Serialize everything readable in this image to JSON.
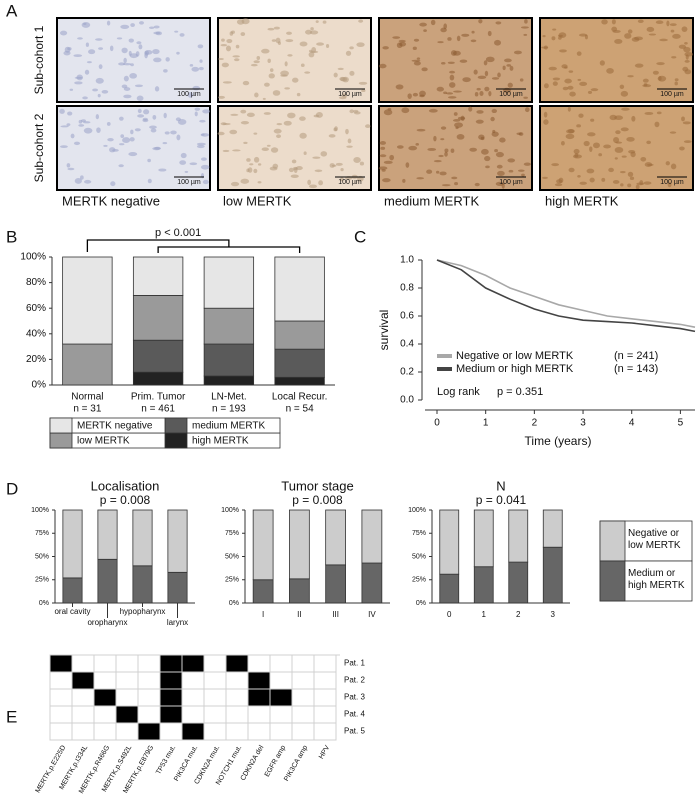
{
  "panel_a": {
    "label": "A",
    "rows": [
      "Sub-cohort 1",
      "Sub-cohort 2"
    ],
    "columns": [
      "MERTK negative",
      "low MERTK",
      "medium MERTK",
      "high MERTK"
    ],
    "scale_bar": "100 µm"
  },
  "chart_data": [
    {
      "type": "bar",
      "stacked": true,
      "panel_label": "B",
      "categories": [
        "Normal",
        "Prim. Tumor",
        "LN-Met.",
        "Local Recur."
      ],
      "category_notes": [
        "n = 31",
        "n = 461",
        "n = 193",
        "n = 54"
      ],
      "annotation": "p < 0.001",
      "series": [
        {
          "name": "high MERTK",
          "color": "#222222",
          "values": [
            0,
            10,
            7,
            6
          ]
        },
        {
          "name": "medium MERTK",
          "color": "#5a5a5a",
          "values": [
            0,
            25,
            25,
            22
          ]
        },
        {
          "name": "low MERTK",
          "color": "#9a9a9a",
          "values": [
            32,
            35,
            28,
            22
          ]
        },
        {
          "name": "MERTK negative",
          "color": "#e6e6e6",
          "values": [
            68,
            30,
            40,
            50
          ]
        }
      ],
      "ylim": [
        0,
        100
      ],
      "yticks": [
        {
          "value": 0,
          "label": "0%"
        },
        {
          "value": 20,
          "label": "20%"
        },
        {
          "value": 40,
          "label": "40%"
        },
        {
          "value": 60,
          "label": "60%"
        },
        {
          "value": 80,
          "label": "80%"
        },
        {
          "value": 100,
          "label": "100%"
        }
      ]
    },
    {
      "type": "line",
      "panel_label": "C",
      "xlabel": "Time (years)",
      "ylabel": "survival",
      "annotations": [
        "Log rank",
        "p = 0.351"
      ],
      "series": [
        {
          "name": "Negative or low MERTK",
          "note": "(n = 241)",
          "color": "#a8a8a8",
          "x": [
            0,
            0.5,
            1,
            1.5,
            2,
            2.5,
            3,
            3.5,
            4,
            4.5,
            5,
            5.3
          ],
          "y": [
            1,
            0.96,
            0.89,
            0.8,
            0.74,
            0.68,
            0.64,
            0.6,
            0.58,
            0.56,
            0.54,
            0.52
          ]
        },
        {
          "name": "Medium or high MERTK",
          "note": "(n = 143)",
          "color": "#444444",
          "x": [
            0,
            0.5,
            1,
            1.5,
            2,
            2.5,
            3,
            3.5,
            4,
            4.5,
            5,
            5.3
          ],
          "y": [
            1,
            0.93,
            0.8,
            0.72,
            0.65,
            0.6,
            0.57,
            0.56,
            0.55,
            0.53,
            0.51,
            0.49
          ]
        }
      ],
      "xlim": [
        0,
        5.3
      ],
      "xticks": [
        0,
        1,
        2,
        3,
        4,
        5
      ],
      "ylim": [
        0,
        1
      ],
      "yticks": [
        {
          "value": 0,
          "label": "0.0"
        },
        0.2,
        0.4,
        0.6,
        0.8,
        {
          "value": 1,
          "label": "1.0"
        }
      ]
    },
    {
      "type": "bar",
      "stacked": true,
      "panel_label": "D",
      "title": "Localisation",
      "subtitle": "p = 0.008",
      "categories": [
        "oral cavity",
        "oropharynx",
        "hypopharynx",
        "larynx"
      ],
      "series": [
        {
          "name": "Medium or high MERTK",
          "color": "#666666",
          "values": [
            27,
            47,
            40,
            33
          ]
        },
        {
          "name": "Negative or low MERTK",
          "color": "#cccccc",
          "values": [
            73,
            53,
            60,
            67
          ]
        }
      ],
      "ylim": [
        0,
        100
      ],
      "yticks": [
        {
          "value": 0,
          "label": "0%"
        },
        {
          "value": 25,
          "label": "25%"
        },
        {
          "value": 50,
          "label": "50%"
        },
        {
          "value": 75,
          "label": "75%"
        },
        {
          "value": 100,
          "label": "100%"
        }
      ]
    },
    {
      "type": "bar",
      "stacked": true,
      "title": "Tumor stage",
      "subtitle": "p = 0.008",
      "categories": [
        "I",
        "II",
        "III",
        "IV"
      ],
      "series": [
        {
          "color": "#666666",
          "values": [
            25,
            26,
            41,
            43
          ]
        },
        {
          "color": "#cccccc",
          "values": [
            75,
            74,
            59,
            57
          ]
        }
      ],
      "ylim": [
        0,
        100
      ],
      "yticks": [
        {
          "value": 0,
          "label": "0%"
        },
        {
          "value": 25,
          "label": "25%"
        },
        {
          "value": 50,
          "label": "50%"
        },
        {
          "value": 75,
          "label": "75%"
        },
        {
          "value": 100,
          "label": "100%"
        }
      ]
    },
    {
      "type": "bar",
      "stacked": true,
      "title": "N",
      "subtitle": "p = 0.041",
      "categories": [
        "0",
        "1",
        "2",
        "3"
      ],
      "series": [
        {
          "color": "#666666",
          "values": [
            31,
            39,
            44,
            60
          ]
        },
        {
          "color": "#cccccc",
          "values": [
            69,
            61,
            56,
            40
          ]
        }
      ],
      "ylim": [
        0,
        100
      ],
      "yticks": [
        {
          "value": 0,
          "label": "0%"
        },
        {
          "value": 25,
          "label": "25%"
        },
        {
          "value": 50,
          "label": "50%"
        },
        {
          "value": 75,
          "label": "75%"
        },
        {
          "value": 100,
          "label": "100%"
        }
      ]
    }
  ],
  "panel_e": {
    "label": "E",
    "features": [
      "MERTK.p.E225D",
      "MERTK.p.I334L",
      "MERTK.p.R466G",
      "MERTK.p.S492L",
      "MERTK.p.E879G",
      "TP53 mut.",
      "PIK3CA mut.",
      "CDKN2A mut.",
      "NOTCH1 mut.",
      "CDKN2A del",
      "EGFR amp",
      "PIK3CA amp",
      "HPV"
    ],
    "patients": [
      "Pat. 1",
      "Pat. 2",
      "Pat. 3",
      "Pat. 4",
      "Pat. 5"
    ],
    "matrix": [
      [
        1,
        0,
        0,
        0,
        0,
        1,
        1,
        0,
        1,
        0,
        0,
        0,
        0
      ],
      [
        0,
        1,
        0,
        0,
        0,
        1,
        0,
        0,
        0,
        1,
        0,
        0,
        0
      ],
      [
        0,
        0,
        1,
        0,
        0,
        1,
        0,
        0,
        0,
        1,
        1,
        0,
        0
      ],
      [
        0,
        0,
        0,
        1,
        0,
        1,
        0,
        0,
        0,
        0,
        0,
        0,
        0
      ],
      [
        0,
        0,
        0,
        0,
        1,
        0,
        1,
        0,
        0,
        0,
        0,
        0,
        0
      ]
    ]
  }
}
